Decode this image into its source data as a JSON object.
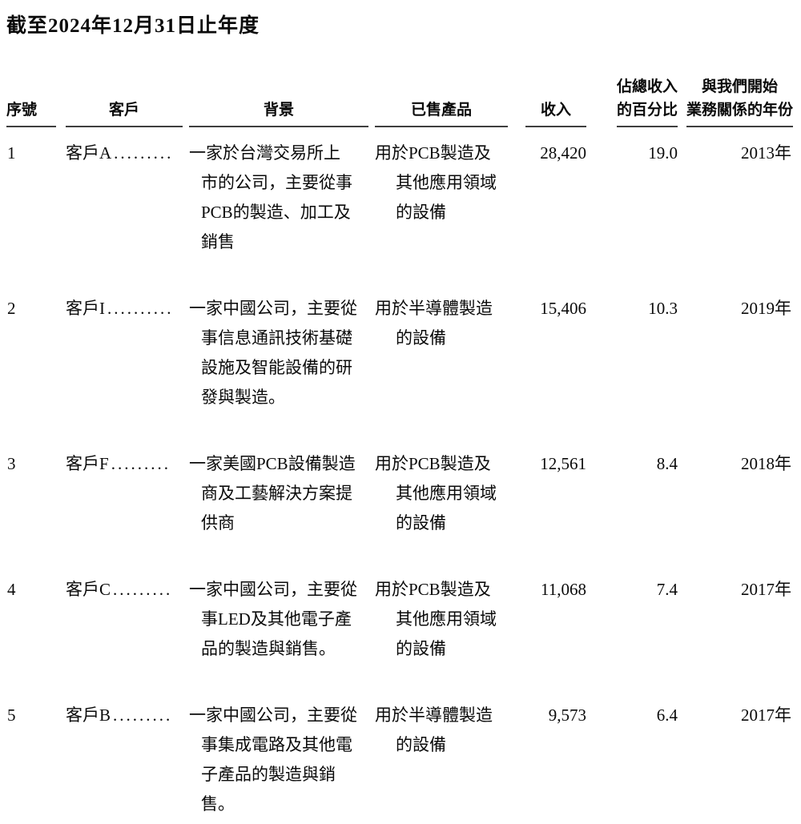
{
  "title": "截至2024年12月31日止年度",
  "table": {
    "headers": {
      "no": "序號",
      "customer": "客戶",
      "background": "背景",
      "products": "已售產品",
      "revenue": "收入",
      "pct_line1": "佔總收入",
      "pct_line2": "的百分比",
      "year_line1": "與我們開始",
      "year_line2": "業務關係的年份"
    },
    "rows": [
      {
        "no": "1",
        "customer": "客戶A",
        "dots": ".........",
        "background": "一家於台灣交易所上\n市的公司，主要從事\nPCB的製造、加工及\n銷售",
        "products": "用於PCB製造及\n其他應用領域\n的設備",
        "revenue": "28,420",
        "pct": "19.0",
        "year": "2013年"
      },
      {
        "no": "2",
        "customer": "客戶I",
        "dots": "..........",
        "background": "一家中國公司，主要從\n事信息通訊技術基礎\n設施及智能設備的研\n發與製造。",
        "products": "用於半導體製造\n的設備",
        "revenue": "15,406",
        "pct": "10.3",
        "year": "2019年"
      },
      {
        "no": "3",
        "customer": "客戶F",
        "dots": ".........",
        "background": "一家美國PCB設備製造\n商及工藝解決方案提\n供商",
        "products": "用於PCB製造及\n其他應用領域\n的設備",
        "revenue": "12,561",
        "pct": "8.4",
        "year": "2018年"
      },
      {
        "no": "4",
        "customer": "客戶C",
        "dots": ".........",
        "background": "一家中國公司，主要從\n事LED及其他電子產\n品的製造與銷售。",
        "products": "用於PCB製造及\n其他應用領域\n的設備",
        "revenue": "11,068",
        "pct": "7.4",
        "year": "2017年"
      },
      {
        "no": "5",
        "customer": "客戶B",
        "dots": ".........",
        "background": "一家中國公司，主要從\n事集成電路及其他電\n子產品的製造與銷售。",
        "products": "用於半導體製造\n的設備",
        "revenue": "9,573",
        "pct": "6.4",
        "year": "2017年"
      }
    ]
  }
}
